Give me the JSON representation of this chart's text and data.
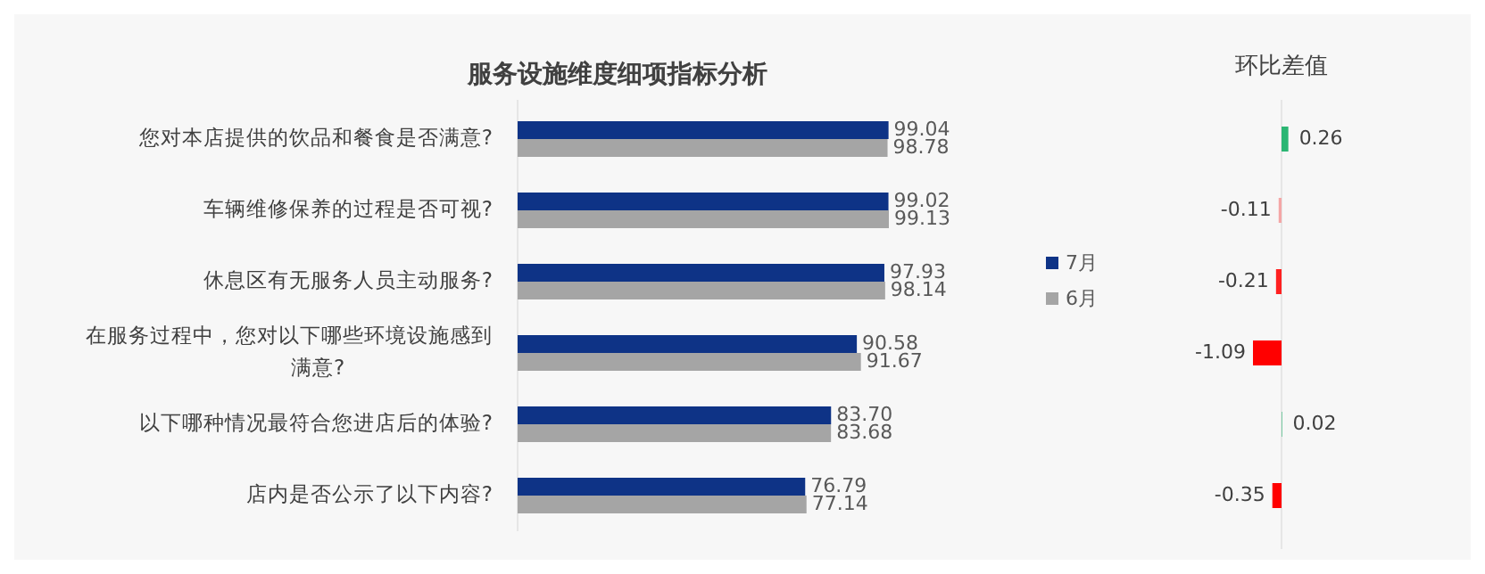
{
  "chart_data": [
    {
      "type": "bar",
      "orientation": "horizontal",
      "title": "服务设施维度细项指标分析",
      "categories": [
        "您对本店提供的饮品和餐食是否满意?",
        "车辆维修保养的过程是否可视?",
        "休息区有无服务人员主动服务?",
        "在服务过程中，您对以下哪些环境设施感到满意?",
        "以下哪种情况最符合您进店后的体验?",
        "店内是否公示了以下内容?"
      ],
      "series": [
        {
          "name": "7月",
          "color": "#0e3386",
          "values": [
            99.04,
            99.02,
            97.93,
            90.58,
            83.7,
            76.79
          ],
          "value_labels": [
            "99.04",
            "99.02",
            "97.93",
            "90.58",
            "83.70",
            "76.79"
          ]
        },
        {
          "name": "6月",
          "color": "#a5a5a5",
          "values": [
            98.78,
            99.13,
            98.14,
            91.67,
            83.68,
            77.14
          ],
          "value_labels": [
            "98.78",
            "99.13",
            "98.14",
            "91.67",
            "83.68",
            "77.14"
          ]
        }
      ],
      "tick_labels": "y",
      "legend": "right"
    },
    {
      "type": "bar",
      "orientation": "horizontal",
      "title": "环比差值",
      "categories": [
        null,
        null,
        null,
        null,
        null,
        null
      ],
      "values": [
        0.26,
        -0.11,
        -0.21,
        -1.09,
        0.02,
        -0.35
      ],
      "colors": [
        "#2bb673",
        "#f4a6a6",
        "#ff2020",
        "#ff0000",
        "#2bb673",
        "#ff0000"
      ],
      "data_labels": true,
      "tick_labels": false
    }
  ]
}
